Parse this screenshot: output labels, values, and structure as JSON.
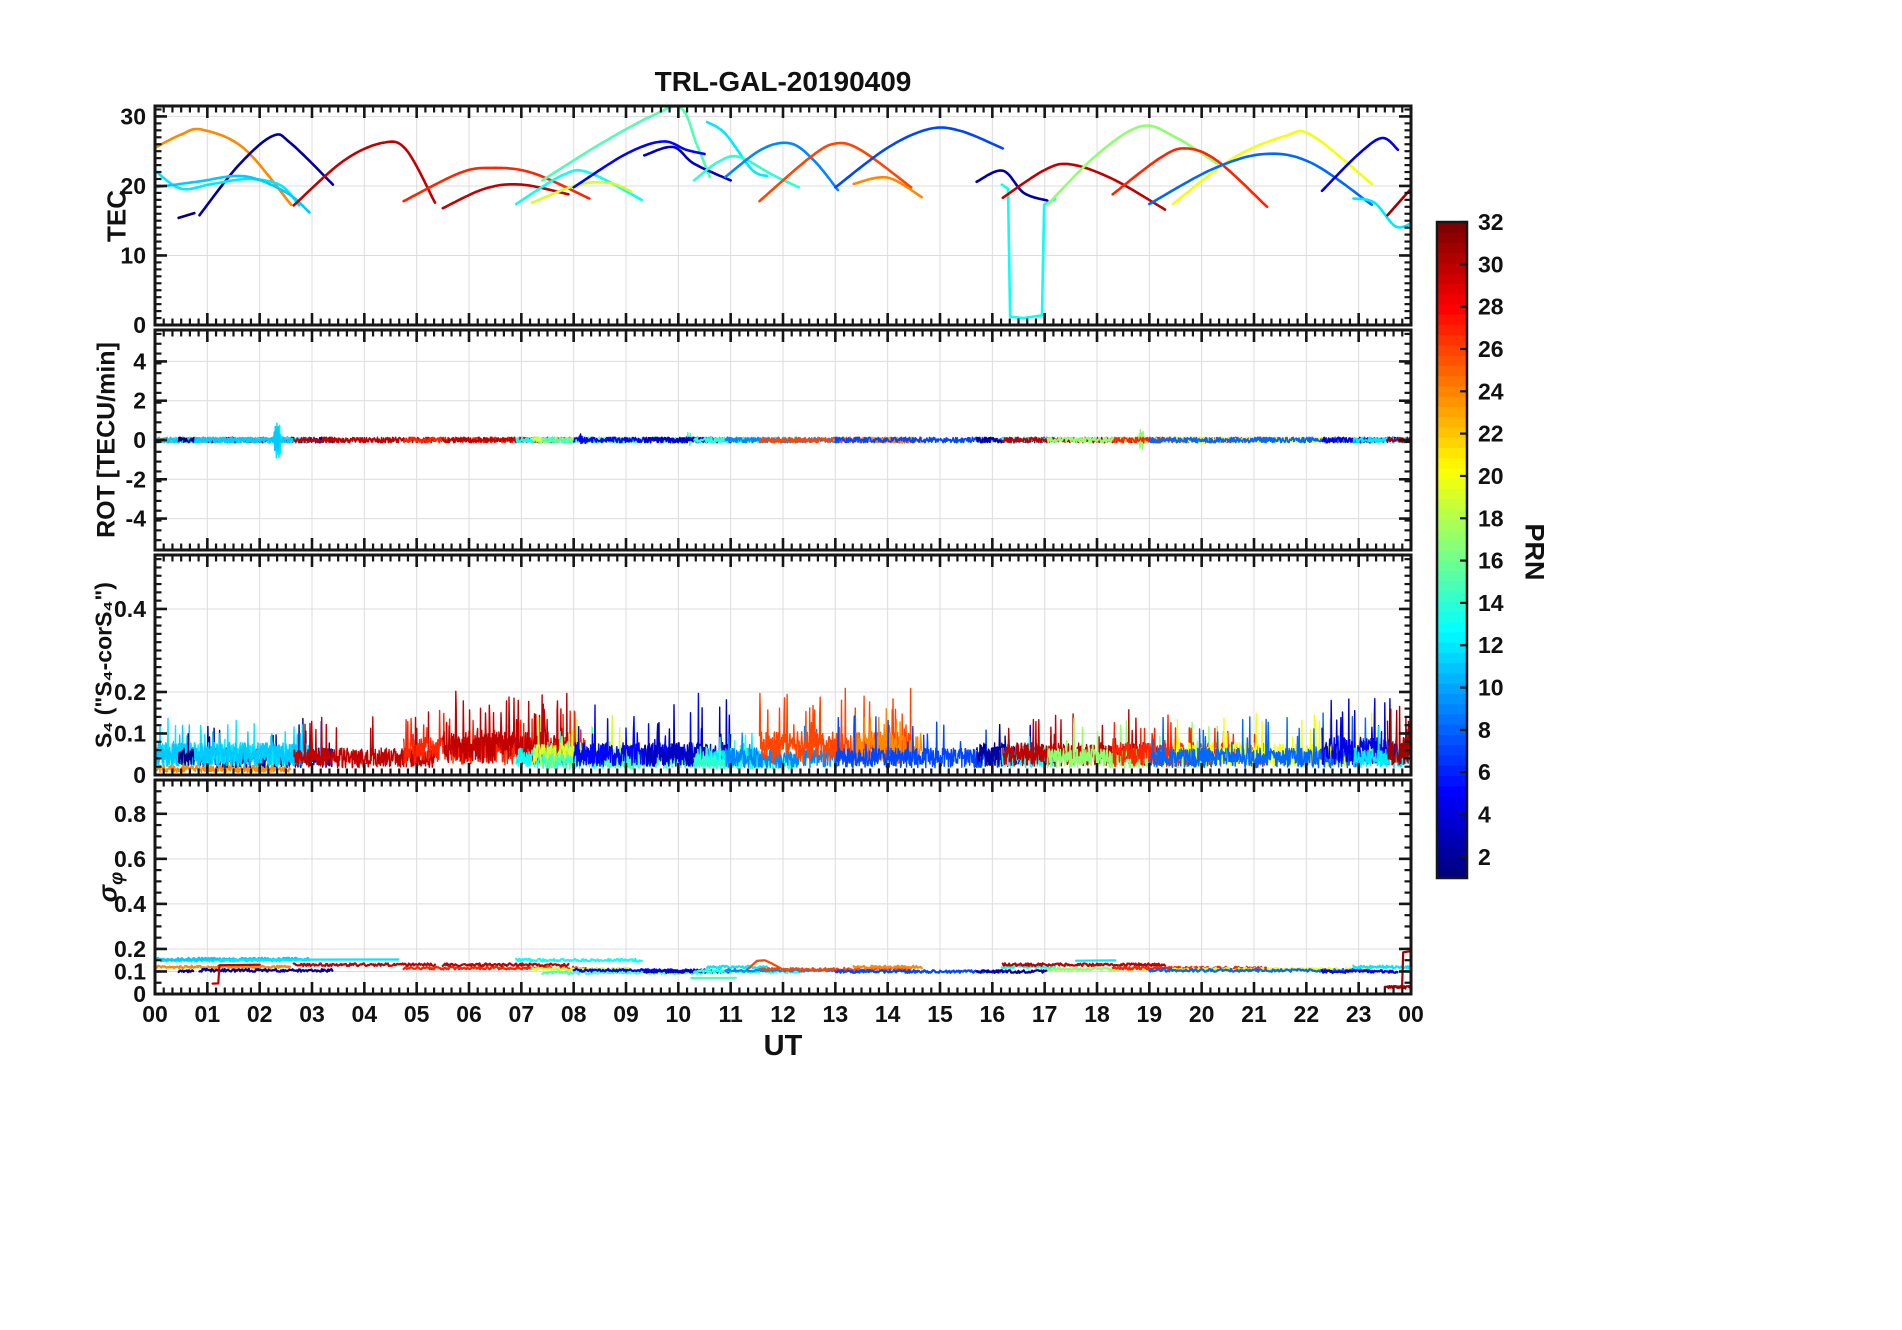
{
  "chart_data": {
    "type": "line",
    "title": "TRL-GAL-20190409",
    "xlabel": "UT",
    "xlim": [
      0,
      24
    ],
    "grid": true,
    "x_ticks": [
      "00",
      "01",
      "02",
      "03",
      "04",
      "05",
      "06",
      "07",
      "08",
      "09",
      "10",
      "11",
      "12",
      "13",
      "14",
      "15",
      "16",
      "17",
      "18",
      "19",
      "20",
      "21",
      "22",
      "23",
      "00"
    ],
    "sigma_label": {
      "base": "σ",
      "sub": "φ"
    },
    "panels": [
      {
        "id": "tec",
        "ylabel": "TEC",
        "ylim": [
          0,
          31.5
        ],
        "yticks": [
          0,
          10,
          20,
          30
        ],
        "yminor": 1
      },
      {
        "id": "rot",
        "ylabel": "ROT [TECU/min]",
        "ylim": [
          -5.6,
          5.6
        ],
        "yticks": [
          -4,
          -2,
          0,
          2,
          4
        ],
        "yminor": 0.5
      },
      {
        "id": "s4",
        "ylabel": "S₄ (\"S₄-corS₄\")",
        "ylim": [
          0,
          0.53
        ],
        "yticks": [
          0,
          0.1,
          0.2,
          0.4
        ],
        "yminor": 0.02
      },
      {
        "id": "sigma",
        "ylabel": "σφ",
        "ylim": [
          0,
          0.95
        ],
        "yticks": [
          0,
          0.1,
          0.2,
          0.4,
          0.6,
          0.8
        ],
        "yminor": 0.05
      }
    ],
    "colorbar": {
      "label": "PRN",
      "range": [
        1,
        32
      ],
      "ticks": [
        2,
        4,
        6,
        8,
        10,
        12,
        14,
        16,
        18,
        20,
        22,
        24,
        26,
        28,
        30,
        32
      ]
    },
    "rot_noise_amp": 0.14,
    "rot_events": [
      {
        "prn": 12,
        "t": 2.35,
        "amp": 1.15
      },
      {
        "prn": 11,
        "t": 2.32,
        "amp": 0.85
      },
      {
        "prn": 17,
        "t": 18.85,
        "amp": 0.5
      },
      {
        "prn": 15,
        "t": 10.2,
        "amp": 0.3
      },
      {
        "prn": 5,
        "t": 8.15,
        "amp": 0.25
      }
    ],
    "arcs": [
      {
        "prn": 24,
        "pts": [
          [
            0,
            25.5
          ],
          [
            0.5,
            27.4
          ],
          [
            0.9,
            28.1
          ],
          [
            1.7,
            25.4
          ],
          [
            2.6,
            17.3
          ]
        ],
        "s4": {
          "base": 0.018,
          "spike": 0.04,
          "prob": 0.02
        },
        "sigma": 0.12
      },
      {
        "prn": 2,
        "pts": [
          [
            0.85,
            15.8
          ],
          [
            1.6,
            23.0
          ],
          [
            2.25,
            27.2
          ],
          [
            2.6,
            26.1
          ],
          [
            3.4,
            20.2
          ]
        ],
        "s4": {
          "base": 0.05,
          "spike": 0.09,
          "prob": 0.04
        },
        "sigma": 0.105
      },
      {
        "prn": 12,
        "pts": [
          [
            0,
            22.2
          ],
          [
            0.5,
            19.6
          ],
          [
            1.1,
            20.3
          ],
          [
            1.8,
            21.0
          ],
          [
            2.4,
            20.1
          ],
          [
            2.75,
            17.2
          ]
        ],
        "s4": {
          "base": 0.06,
          "spike": 0.08,
          "prob": 0.05
        },
        "sigma": 0.15
      },
      {
        "prn": 11,
        "pts": [
          [
            0,
            19.8
          ],
          [
            0.8,
            20.6
          ],
          [
            1.7,
            21.4
          ],
          [
            2.5,
            19.1
          ],
          [
            2.95,
            16.2
          ]
        ],
        "s4": {
          "base": 0.06,
          "spike": 0.08,
          "prob": 0.05
        },
        "sigma": 0.155
      },
      {
        "prn": 1,
        "pts": [
          [
            0.45,
            15.4
          ],
          [
            0.75,
            16.1
          ]
        ],
        "s4": {
          "base": 0.05,
          "spike": 0.05,
          "prob": 0.02
        },
        "sigma": 0.1
      },
      {
        "prn": 30,
        "pts": [
          [
            2.65,
            17.2
          ],
          [
            3.6,
            23.6
          ],
          [
            4.35,
            26.2
          ],
          [
            4.8,
            25.2
          ],
          [
            5.35,
            17.6
          ]
        ],
        "s4": {
          "base": 0.05,
          "spike": 0.09,
          "prob": 0.04
        },
        "sigma": 0.13
      },
      {
        "prn": 27,
        "pts": [
          [
            4.75,
            17.8
          ],
          [
            5.8,
            21.8
          ],
          [
            6.4,
            22.6
          ],
          [
            7.2,
            21.9
          ],
          [
            8.3,
            18.2
          ]
        ],
        "s4": {
          "base": 0.07,
          "spike": 0.1,
          "prob": 0.06
        },
        "sigma": 0.115
      },
      {
        "prn": 30,
        "pts": [
          [
            5.5,
            16.8
          ],
          [
            6.3,
            19.6
          ],
          [
            7.0,
            20.2
          ],
          [
            7.9,
            18.8
          ]
        ],
        "s4": {
          "base": 0.08,
          "spike": 0.12,
          "prob": 0.09
        },
        "sigma": 0.13
      },
      {
        "prn": 13,
        "pts": [
          [
            6.9,
            17.4
          ],
          [
            7.8,
            21.6
          ],
          [
            8.3,
            21.9
          ],
          [
            9.3,
            18.0
          ]
        ],
        "s4": {
          "base": 0.05,
          "spike": 0.07,
          "prob": 0.03
        },
        "sigma": 0.15
      },
      {
        "prn": 19,
        "pts": [
          [
            7.2,
            17.6
          ],
          [
            8.1,
            20.2
          ],
          [
            8.7,
            20.4
          ],
          [
            9.1,
            19.2
          ]
        ],
        "s4": {
          "base": 0.06,
          "spike": 0.09,
          "prob": 0.05
        },
        "sigma": 0.11
      },
      {
        "prn": 15,
        "pts": [
          [
            7.4,
            20.8
          ],
          [
            8.5,
            26.0
          ],
          [
            9.5,
            30.1
          ],
          [
            10.05,
            31.2
          ],
          [
            10.35,
            26.0
          ],
          [
            10.6,
            21.3
          ]
        ],
        "s4": {
          "base": 0.04,
          "spike": 0.06,
          "prob": 0.03
        },
        "sigma": 0.095
      },
      {
        "prn": 5,
        "pts": [
          [
            8.0,
            19.8
          ],
          [
            9.0,
            24.6
          ],
          [
            9.7,
            26.4
          ],
          [
            10.15,
            25.2
          ],
          [
            10.5,
            24.6
          ]
        ],
        "s4": {
          "base": 0.06,
          "spike": 0.14,
          "prob": 0.04
        },
        "sigma": 0.105
      },
      {
        "prn": 3,
        "pts": [
          [
            9.35,
            24.4
          ],
          [
            9.9,
            25.6
          ],
          [
            10.3,
            23.2
          ],
          [
            11.0,
            20.8
          ]
        ],
        "s4": {
          "base": 0.06,
          "spike": 0.13,
          "prob": 0.05
        },
        "sigma": 0.1
      },
      {
        "prn": 12,
        "pts": [
          [
            10.55,
            29.2
          ],
          [
            10.9,
            27.5
          ],
          [
            11.4,
            22.4
          ],
          [
            11.7,
            21.4
          ]
        ],
        "s4": {
          "base": 0.05,
          "spike": 0.07,
          "prob": 0.03
        },
        "sigma": 0.12
      },
      {
        "prn": 14,
        "pts": [
          [
            10.3,
            20.8
          ],
          [
            10.75,
            23.4
          ],
          [
            11.15,
            24.2
          ],
          [
            11.8,
            21.6
          ],
          [
            12.3,
            19.8
          ]
        ],
        "s4": {
          "base": 0.04,
          "spike": 0.06,
          "prob": 0.03
        },
        "sigma": 0.1
      },
      {
        "prn": 9,
        "pts": [
          [
            10.9,
            21.3
          ],
          [
            11.6,
            25.3
          ],
          [
            12.15,
            26.1
          ],
          [
            12.6,
            23.6
          ],
          [
            13.05,
            19.4
          ]
        ],
        "s4": {
          "base": 0.05,
          "spike": 0.09,
          "prob": 0.04
        },
        "sigma": 0.105
      },
      {
        "prn": 26,
        "pts": [
          [
            11.55,
            17.8
          ],
          [
            12.5,
            24.0
          ],
          [
            13.0,
            26.1
          ],
          [
            13.5,
            25.1
          ],
          [
            14.45,
            19.8
          ]
        ],
        "s4": {
          "base": 0.08,
          "spike": 0.12,
          "prob": 0.12
        },
        "sigma": 0.11
      },
      {
        "prn": 24,
        "pts": [
          [
            13.35,
            20.3
          ],
          [
            14.0,
            21.2
          ],
          [
            14.65,
            18.4
          ]
        ],
        "s4": {
          "base": 0.08,
          "spike": 0.1,
          "prob": 0.1
        },
        "sigma": 0.12
      },
      {
        "prn": 7,
        "pts": [
          [
            13.0,
            19.8
          ],
          [
            14.0,
            25.5
          ],
          [
            14.8,
            28.2
          ],
          [
            15.4,
            27.9
          ],
          [
            16.2,
            25.4
          ]
        ],
        "s4": {
          "base": 0.05,
          "spike": 0.09,
          "prob": 0.04
        },
        "sigma": 0.1
      },
      {
        "prn": 2,
        "pts": [
          [
            15.7,
            20.6
          ],
          [
            16.2,
            22.2
          ],
          [
            16.6,
            19.0
          ],
          [
            17.05,
            17.9
          ]
        ],
        "s4": {
          "base": 0.06,
          "spike": 0.09,
          "prob": 0.04
        },
        "sigma": 0.1
      },
      {
        "prn": 13,
        "lin": true,
        "pts": [
          [
            16.18,
            20.2
          ],
          [
            16.3,
            19.6
          ],
          [
            16.34,
            1.2
          ],
          [
            16.6,
            1.0
          ],
          [
            16.95,
            1.4
          ],
          [
            16.99,
            17.3
          ],
          [
            17.2,
            18.1
          ]
        ],
        "s4": {
          "base": 0.05,
          "spike": 0.06,
          "prob": 0.03
        },
        "sigma": 0.12
      },
      {
        "prn": 30,
        "pts": [
          [
            16.2,
            18.3
          ],
          [
            17.0,
            22.3
          ],
          [
            17.5,
            23.1
          ],
          [
            18.3,
            21.0
          ],
          [
            19.3,
            16.6
          ]
        ],
        "s4": {
          "base": 0.06,
          "spike": 0.08,
          "prob": 0.05
        },
        "sigma": 0.13
      },
      {
        "prn": 17,
        "pts": [
          [
            17.05,
            17.3
          ],
          [
            18.0,
            24.5
          ],
          [
            18.85,
            28.6
          ],
          [
            19.5,
            27.0
          ],
          [
            20.3,
            23.2
          ]
        ],
        "s4": {
          "base": 0.05,
          "spike": 0.08,
          "prob": 0.05
        },
        "sigma": 0.11
      },
      {
        "prn": 27,
        "pts": [
          [
            18.3,
            18.8
          ],
          [
            19.2,
            24.0
          ],
          [
            19.7,
            25.4
          ],
          [
            20.3,
            23.6
          ],
          [
            21.25,
            17.0
          ]
        ],
        "s4": {
          "base": 0.06,
          "spike": 0.09,
          "prob": 0.05
        },
        "sigma": 0.115
      },
      {
        "prn": 20,
        "pts": [
          [
            19.45,
            17.4
          ],
          [
            20.6,
            24.0
          ],
          [
            21.6,
            27.2
          ],
          [
            22.1,
            27.3
          ],
          [
            23.25,
            20.3
          ]
        ],
        "s4": {
          "base": 0.06,
          "spike": 0.09,
          "prob": 0.05
        },
        "sigma": 0.11
      },
      {
        "prn": 8,
        "pts": [
          [
            19.0,
            17.4
          ],
          [
            20.2,
            22.4
          ],
          [
            21.2,
            24.6
          ],
          [
            22.1,
            23.3
          ],
          [
            23.25,
            17.3
          ]
        ],
        "s4": {
          "base": 0.05,
          "spike": 0.09,
          "prob": 0.04
        },
        "sigma": 0.105
      },
      {
        "prn": 4,
        "pts": [
          [
            22.3,
            19.3
          ],
          [
            23.0,
            24.6
          ],
          [
            23.45,
            26.9
          ],
          [
            23.75,
            25.2
          ]
        ],
        "s4": {
          "base": 0.07,
          "spike": 0.13,
          "prob": 0.08
        },
        "sigma": 0.1
      },
      {
        "prn": 12,
        "pts": [
          [
            22.9,
            18.2
          ],
          [
            23.3,
            17.6
          ],
          [
            23.7,
            14.2
          ],
          [
            24,
            14.6
          ]
        ],
        "s4": {
          "base": 0.05,
          "spike": 0.07,
          "prob": 0.03
        },
        "sigma": 0.12
      },
      {
        "prn": 31,
        "pts": [
          [
            23.55,
            15.8
          ],
          [
            24,
            19.6
          ]
        ],
        "s4": {
          "base": 0.07,
          "spike": 0.12,
          "prob": 0.1
        },
        "sigma": 0.03
      }
    ],
    "sigma_extra": [
      {
        "prn": 12,
        "pts": [
          [
            1.25,
            0.152
          ],
          [
            4.65,
            0.153
          ]
        ]
      },
      {
        "prn": 12,
        "pts": [
          [
            17.6,
            0.148
          ],
          [
            18.35,
            0.149
          ]
        ]
      },
      {
        "prn": 30,
        "pts": [
          [
            1.1,
            0.046
          ],
          [
            1.21,
            0.047
          ],
          [
            1.23,
            0.128
          ],
          [
            2.0,
            0.13
          ]
        ]
      },
      {
        "prn": 15,
        "pts": [
          [
            10.25,
            0.071
          ],
          [
            11.1,
            0.072
          ]
        ]
      },
      {
        "prn": 26,
        "pts": [
          [
            11.35,
            0.115
          ],
          [
            11.5,
            0.147
          ],
          [
            11.65,
            0.15
          ],
          [
            11.8,
            0.134
          ],
          [
            11.95,
            0.115
          ]
        ]
      },
      {
        "prn": 31,
        "pts": [
          [
            23.5,
            0.032
          ],
          [
            23.83,
            0.033
          ],
          [
            23.85,
            0.185
          ],
          [
            24,
            0.19
          ]
        ]
      }
    ]
  }
}
